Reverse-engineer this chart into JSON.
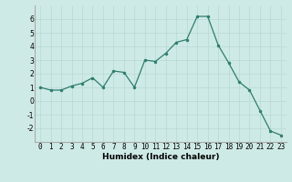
{
  "x": [
    0,
    1,
    2,
    3,
    4,
    5,
    6,
    7,
    8,
    9,
    10,
    11,
    12,
    13,
    14,
    15,
    16,
    17,
    18,
    19,
    20,
    21,
    22,
    23
  ],
  "y": [
    1.0,
    0.8,
    0.8,
    1.1,
    1.3,
    1.7,
    1.0,
    2.2,
    2.1,
    1.0,
    3.0,
    2.9,
    3.5,
    4.3,
    4.5,
    6.2,
    6.2,
    4.1,
    2.8,
    1.4,
    0.8,
    -0.7,
    -2.2,
    -2.5
  ],
  "xlabel": "Humidex (Indice chaleur)",
  "xlim": [
    -0.5,
    23.5
  ],
  "ylim": [
    -3,
    7
  ],
  "yticks": [
    -2,
    -1,
    0,
    1,
    2,
    3,
    4,
    5,
    6
  ],
  "xticks": [
    0,
    1,
    2,
    3,
    4,
    5,
    6,
    7,
    8,
    9,
    10,
    11,
    12,
    13,
    14,
    15,
    16,
    17,
    18,
    19,
    20,
    21,
    22,
    23
  ],
  "line_color": "#2e7d6e",
  "marker_color": "#2e7d6e",
  "bg_color": "#ceeae6",
  "grid_color": "#b8d8d4",
  "label_fontsize": 6.5,
  "tick_fontsize": 5.5
}
